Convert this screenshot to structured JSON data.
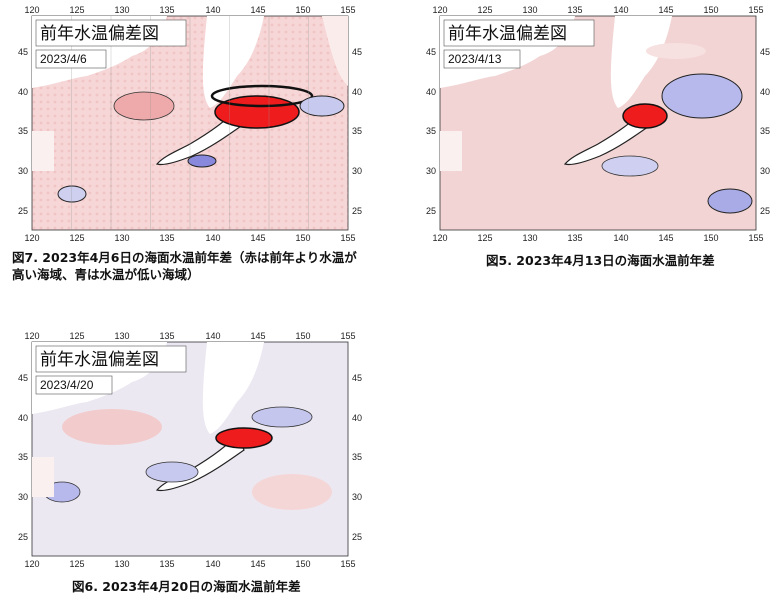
{
  "panels": [
    {
      "map_title": "前年水温偏差図",
      "date": "2023/4/6",
      "caption_line1": "図7. 2023年4月6日の海面水温前年差（赤は前年より水温が",
      "caption_line2": "高い海域、青は水温が低い海域）"
    },
    {
      "map_title": "前年水温偏差図",
      "date": "2023/4/13",
      "caption_line1": "図5. 2023年4月13日の海面水温前年差"
    },
    {
      "map_title": "前年水温偏差図",
      "date": "2023/4/20",
      "caption_line1": "図6. 2023年4月20日の海面水温前年差"
    }
  ],
  "axes": {
    "x_ticks": [
      "120",
      "125",
      "130",
      "135",
      "140",
      "145",
      "150",
      "155"
    ],
    "y_ticks": [
      "25",
      "30",
      "35",
      "40",
      "45"
    ]
  },
  "colors": {
    "warm_strong": "#ee1c1c",
    "warm_light": "#f4c9c9",
    "cool_strong": "#5a5ad6",
    "cool_light": "#d6d8f2",
    "land": "#ffffff"
  }
}
